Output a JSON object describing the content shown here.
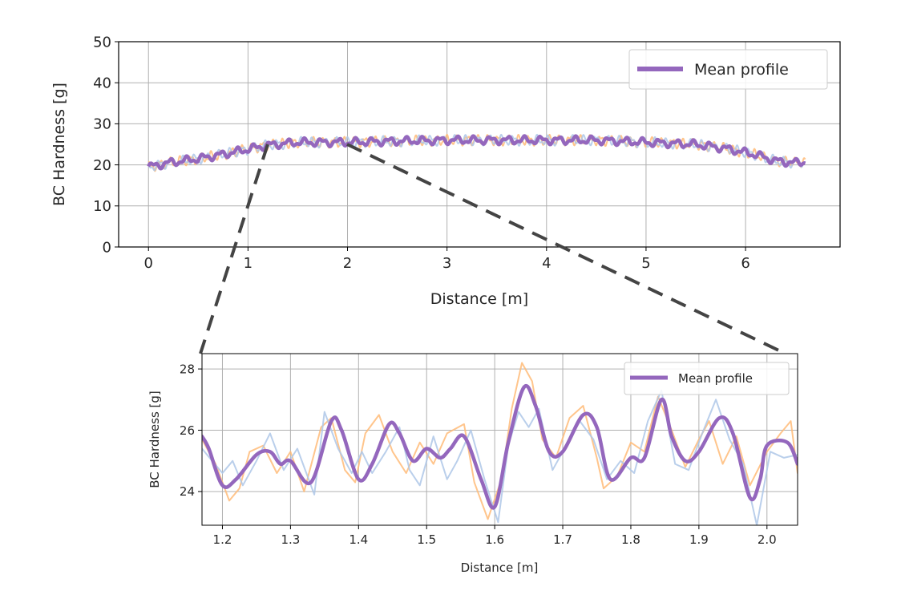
{
  "colors": {
    "mean": "#9467bd",
    "trace_a": "#ffbb78",
    "trace_b": "#aec7e8",
    "zoom_lines": "#444444",
    "grid": "#b0b0b0"
  },
  "chart_data": [
    {
      "id": "overview",
      "type": "line",
      "xlabel": "Distance [m]",
      "ylabel": "BC Hardness [g]",
      "xlim": [
        -0.3,
        6.95
      ],
      "ylim": [
        0,
        50
      ],
      "xticks": [
        0,
        1,
        2,
        3,
        4,
        5,
        6
      ],
      "yticks": [
        0,
        10,
        20,
        30,
        40,
        50
      ],
      "grid": true,
      "legend": {
        "position": "top-right",
        "entries": [
          "Mean profile"
        ]
      },
      "trend": {
        "x": [
          0,
          0.2,
          0.5,
          0.8,
          1.0,
          1.2,
          1.5,
          2.0,
          2.5,
          3.0,
          3.5,
          4.0,
          4.5,
          5.0,
          5.5,
          5.8,
          6.1,
          6.3,
          6.5,
          6.6
        ],
        "y": [
          19.5,
          20.5,
          21.5,
          22.8,
          23.8,
          24.8,
          25.5,
          25.5,
          25.8,
          26.0,
          26.0,
          26.0,
          26.0,
          25.5,
          25.0,
          24.0,
          22.5,
          21.0,
          20.5,
          20.8
        ]
      },
      "series": [
        {
          "name": "Mean profile",
          "noise": 1.0
        },
        {
          "noise": 1.3
        },
        {
          "noise": 1.3
        }
      ]
    },
    {
      "id": "zoom",
      "type": "line",
      "xlabel": "Distance [m]",
      "ylabel": "BC Hardness [g]",
      "xlim": [
        1.17,
        2.045
      ],
      "ylim": [
        22.9,
        28.5
      ],
      "xticks": [
        1.2,
        1.3,
        1.4,
        1.5,
        1.6,
        1.7,
        1.8,
        1.9,
        2.0
      ],
      "xtick_labels": [
        "1.2",
        "1.3",
        "1.4",
        "1.5",
        "1.6",
        "1.7",
        "1.8",
        "1.9",
        "2.0"
      ],
      "yticks": [
        24,
        26,
        28
      ],
      "grid": true,
      "legend": {
        "position": "top-right",
        "entries": [
          "Mean profile"
        ]
      },
      "series": [
        {
          "name": "Mean profile",
          "x": [
            1.17,
            1.18,
            1.2,
            1.22,
            1.25,
            1.27,
            1.285,
            1.3,
            1.33,
            1.36,
            1.375,
            1.4,
            1.42,
            1.445,
            1.46,
            1.48,
            1.5,
            1.52,
            1.535,
            1.555,
            1.58,
            1.6,
            1.62,
            1.643,
            1.66,
            1.68,
            1.7,
            1.73,
            1.75,
            1.77,
            1.8,
            1.82,
            1.845,
            1.86,
            1.88,
            1.9,
            1.93,
            1.95,
            1.975,
            1.99,
            2.0,
            2.03,
            2.045
          ],
          "y": [
            25.8,
            25.4,
            24.2,
            24.4,
            25.2,
            25.3,
            24.9,
            25.0,
            24.3,
            26.3,
            26.0,
            24.4,
            24.9,
            26.2,
            25.9,
            25.0,
            25.4,
            25.1,
            25.4,
            25.8,
            24.4,
            23.5,
            25.6,
            27.4,
            26.8,
            25.3,
            25.3,
            26.5,
            26.1,
            24.4,
            25.1,
            25.1,
            27.0,
            25.8,
            25.0,
            25.3,
            26.4,
            25.9,
            23.8,
            24.4,
            25.5,
            25.6,
            24.9
          ]
        },
        {
          "x": [
            1.17,
            1.19,
            1.21,
            1.225,
            1.24,
            1.26,
            1.28,
            1.3,
            1.32,
            1.345,
            1.36,
            1.38,
            1.395,
            1.41,
            1.43,
            1.45,
            1.47,
            1.49,
            1.51,
            1.53,
            1.555,
            1.57,
            1.59,
            1.61,
            1.625,
            1.64,
            1.655,
            1.67,
            1.69,
            1.71,
            1.73,
            1.75,
            1.76,
            1.78,
            1.8,
            1.82,
            1.84,
            1.86,
            1.88,
            1.9,
            1.915,
            1.935,
            1.955,
            1.975,
            2.0,
            2.02,
            2.035,
            2.045
          ],
          "y": [
            25.7,
            24.9,
            23.7,
            24.1,
            25.3,
            25.5,
            24.6,
            25.3,
            24.0,
            26.1,
            26.4,
            24.7,
            24.3,
            25.9,
            26.5,
            25.3,
            24.6,
            25.6,
            24.9,
            25.9,
            26.2,
            24.3,
            23.1,
            24.4,
            26.7,
            28.2,
            27.6,
            25.7,
            25.1,
            26.4,
            26.8,
            25.1,
            24.1,
            24.5,
            25.6,
            25.3,
            27.1,
            26.0,
            24.8,
            25.7,
            26.3,
            24.9,
            25.8,
            24.2,
            25.3,
            25.9,
            26.3,
            24.6
          ]
        },
        {
          "x": [
            1.17,
            1.185,
            1.2,
            1.215,
            1.23,
            1.25,
            1.27,
            1.29,
            1.31,
            1.335,
            1.35,
            1.37,
            1.39,
            1.405,
            1.42,
            1.44,
            1.46,
            1.475,
            1.49,
            1.51,
            1.53,
            1.545,
            1.565,
            1.585,
            1.605,
            1.62,
            1.635,
            1.65,
            1.665,
            1.685,
            1.705,
            1.725,
            1.745,
            1.765,
            1.785,
            1.805,
            1.825,
            1.845,
            1.865,
            1.885,
            1.905,
            1.925,
            1.945,
            1.965,
            1.985,
            2.005,
            2.025,
            2.045
          ],
          "y": [
            25.4,
            25.0,
            24.6,
            25.0,
            24.2,
            25.0,
            25.9,
            24.7,
            25.4,
            23.9,
            26.6,
            25.4,
            24.6,
            25.3,
            24.6,
            25.3,
            26.1,
            24.7,
            24.2,
            25.8,
            24.4,
            25.0,
            26.0,
            24.4,
            23.0,
            25.5,
            26.6,
            26.1,
            26.7,
            24.7,
            25.5,
            26.3,
            25.7,
            24.4,
            25.0,
            24.6,
            26.3,
            27.3,
            24.9,
            24.7,
            25.9,
            27.0,
            25.7,
            24.9,
            22.9,
            25.3,
            25.1,
            25.2
          ]
        }
      ]
    }
  ]
}
